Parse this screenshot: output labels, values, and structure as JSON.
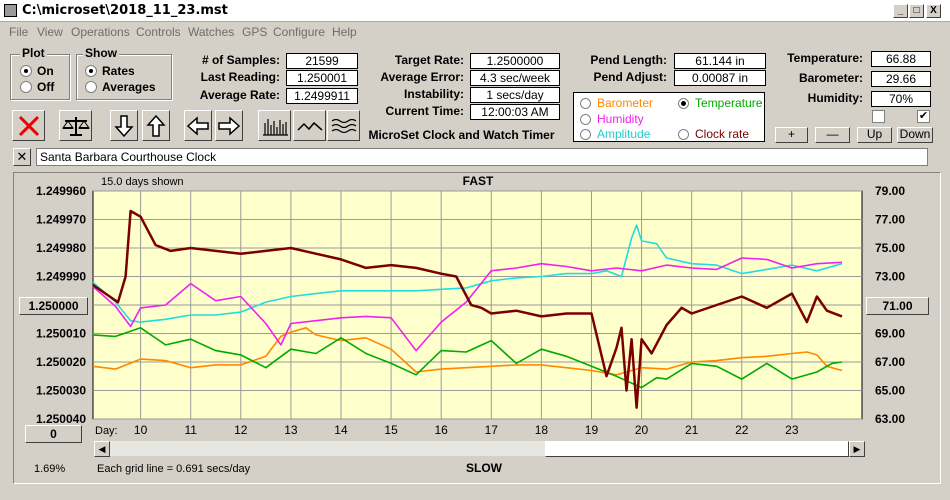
{
  "window": {
    "title": "C:\\microset\\2018_11_23.mst",
    "min": "_",
    "max": "□",
    "close": "X"
  },
  "menu": [
    "File",
    "View",
    "Operations",
    "Controls",
    "Watches",
    "GPS",
    "Configure",
    "Help"
  ],
  "plot": {
    "label": "Plot",
    "on": "On",
    "off": "Off",
    "selected": "On"
  },
  "show": {
    "label": "Show",
    "rates": "Rates",
    "averages": "Averages",
    "selected": "Rates"
  },
  "stats": {
    "samples_label": "# of Samples:",
    "samples": "21599",
    "last_label": "Last Reading:",
    "last": "1.250001",
    "avg_rate_label": "Average Rate:",
    "avg_rate": "1.2499911",
    "target_label": "Target Rate:",
    "target": "1.2500000",
    "avg_err_label": "Average Error:",
    "avg_err": "4.3 sec/week",
    "instab_label": "Instability:",
    "instab": "1 secs/day",
    "time_label": "Current Time:",
    "time": "12:00:03 AM",
    "pend_len_label": "Pend Length:",
    "pend_len": "61.144 in",
    "pend_adj_label": "Pend Adjust:",
    "pend_adj": "0.00087 in",
    "temp_label": "Temperature:",
    "temp": "66.88",
    "baro_label": "Barometer:",
    "baro": "29.66",
    "hum_label": "Humidity:",
    "hum": "70%"
  },
  "app_caption": "MicroSet Clock and Watch Timer",
  "legend": {
    "barometer": "Barometer",
    "temperature": "Temperature",
    "humidity": "Humidity",
    "amplitude": "Amplitude",
    "clock_rate": "Clock rate",
    "selected": "Temperature"
  },
  "buttons": {
    "plus": "+",
    "minus": "—",
    "up": "Up",
    "down": "Down"
  },
  "checkboxes": {
    "left": false,
    "right": true
  },
  "clock_name": "Santa Barbara Courthouse Clock",
  "colors": {
    "plot_bg": "#ffffcc",
    "clock": "#7a0000",
    "temperature": "#00aa00",
    "humidity": "#ee22ee",
    "amplitude": "#22dddd",
    "barometer": "#ff8800",
    "grid": "#9a9a9a"
  },
  "chart_data": {
    "type": "line",
    "top_label": "FAST",
    "bottom_label": "SLOW",
    "days_shown": "15.0 days shown",
    "grid_note": "Each grid line = 0.691 secs/day",
    "day_axis_label": "Day:",
    "days": [
      "10",
      "11",
      "12",
      "13",
      "14",
      "15",
      "16",
      "17",
      "18",
      "19",
      "20",
      "21",
      "22",
      "23"
    ],
    "x_range": [
      9.05,
      24.4
    ],
    "left_axis": {
      "ticks": [
        "1.249960",
        "1.249970",
        "1.249980",
        "1.249990",
        "1.250000",
        "1.250010",
        "1.250020",
        "1.250030",
        "1.250040"
      ],
      "range": [
        1.24996,
        1.25004
      ],
      "center_button": "1.250000",
      "low_button": "0"
    },
    "right_axis": {
      "ticks": [
        "79.00",
        "77.00",
        "75.00",
        "73.00",
        "71.00",
        "69.00",
        "67.00",
        "65.00",
        "63.00"
      ],
      "range": [
        63,
        79
      ],
      "center_button": "71.00"
    },
    "zoom_percent": "1.69%",
    "series": [
      {
        "name": "Clock rate",
        "color": "#7a0000",
        "x": [
          9.05,
          9.3,
          9.55,
          9.7,
          9.8,
          10.0,
          10.3,
          10.6,
          11.0,
          11.5,
          12.0,
          12.5,
          13.0,
          13.5,
          14.0,
          14.5,
          15.0,
          15.5,
          16.0,
          16.3,
          16.6,
          16.8,
          17.0,
          17.5,
          18.0,
          18.5,
          19.0,
          19.3,
          19.5,
          19.6,
          19.7,
          19.8,
          19.9,
          20.0,
          20.2,
          20.5,
          20.8,
          21.0,
          21.5,
          22.0,
          22.5,
          23.0,
          23.3,
          23.5,
          23.7,
          24.0
        ],
        "y": [
          1.249993,
          1.249996,
          1.249999,
          1.24999,
          1.249967,
          1.249969,
          1.249979,
          1.249981,
          1.24998,
          1.249981,
          1.249982,
          1.249981,
          1.24998,
          1.249982,
          1.249984,
          1.249987,
          1.249986,
          1.249987,
          1.249989,
          1.24999,
          1.25,
          1.250001,
          1.250003,
          1.250002,
          1.250004,
          1.250003,
          1.250003,
          1.250025,
          1.250015,
          1.250008,
          1.25003,
          1.250012,
          1.250036,
          1.250012,
          1.250017,
          1.250007,
          1.250001,
          1.250003,
          1.25,
          1.249997,
          1.250001,
          1.249996,
          1.250006,
          1.249997,
          1.250002,
          1.250004
        ]
      },
      {
        "name": "Temperature",
        "color": "#00aa00",
        "x": [
          9.05,
          9.5,
          10.0,
          10.5,
          11.0,
          11.5,
          12.0,
          12.5,
          13.0,
          13.5,
          14.0,
          14.5,
          15.0,
          15.5,
          16.0,
          16.5,
          17.0,
          17.5,
          18.0,
          18.5,
          19.0,
          19.5,
          20.0,
          20.3,
          20.5,
          21.0,
          21.5,
          22.0,
          22.5,
          23.0,
          23.5,
          23.8,
          24.0
        ],
        "y": [
          68.9,
          68.8,
          69.4,
          68.2,
          68.6,
          67.8,
          67.5,
          66.6,
          67.9,
          67.6,
          68.7,
          67.6,
          66.9,
          66.1,
          67.8,
          67.7,
          68.5,
          66.9,
          67.9,
          67.4,
          66.7,
          66.0,
          65.2,
          65.9,
          65.8,
          66.9,
          66.7,
          65.8,
          66.9,
          65.8,
          66.3,
          66.9,
          67.0
        ]
      },
      {
        "name": "Humidity",
        "color": "#ee22ee",
        "x": [
          9.05,
          9.5,
          9.8,
          10.0,
          10.5,
          11.0,
          11.5,
          12.0,
          12.5,
          12.8,
          13.0,
          13.5,
          14.0,
          14.5,
          15.0,
          15.5,
          16.0,
          16.5,
          17.0,
          17.5,
          18.0,
          18.5,
          19.0,
          19.5,
          20.0,
          20.5,
          21.0,
          21.5,
          22.0,
          22.5,
          23.0,
          23.5,
          24.0
        ],
        "y": [
          72.3,
          70.9,
          69.5,
          70.8,
          71.0,
          72.5,
          71.3,
          71.6,
          69.7,
          68.2,
          69.7,
          69.9,
          70.1,
          70.2,
          70.1,
          67.8,
          69.8,
          71.2,
          73.4,
          73.6,
          73.9,
          73.7,
          73.4,
          73.6,
          73.4,
          73.8,
          73.6,
          73.5,
          74.3,
          74.2,
          73.6,
          73.9,
          74.0
        ]
      },
      {
        "name": "Amplitude",
        "color": "#22dddd",
        "x": [
          9.05,
          9.5,
          9.8,
          10.0,
          10.5,
          11.0,
          11.5,
          12.0,
          12.5,
          13.0,
          13.5,
          14.0,
          14.5,
          15.0,
          15.5,
          16.0,
          16.5,
          17.0,
          17.5,
          18.0,
          18.5,
          19.0,
          19.3,
          19.6,
          19.8,
          19.9,
          20.0,
          20.3,
          20.5,
          21.0,
          21.5,
          22.0,
          22.5,
          23.0,
          23.5,
          24.0
        ],
        "y": [
          72.6,
          71.2,
          69.9,
          69.8,
          70.0,
          70.3,
          70.3,
          70.5,
          71.2,
          71.6,
          71.8,
          72.0,
          72.0,
          72.0,
          72.0,
          72.1,
          72.2,
          72.7,
          72.9,
          73.0,
          73.2,
          73.2,
          73.4,
          73.0,
          75.7,
          76.6,
          75.5,
          75.3,
          74.3,
          73.9,
          73.8,
          73.2,
          73.5,
          73.8,
          73.4,
          73.9
        ]
      },
      {
        "name": "Barometer",
        "color": "#ff8800",
        "x": [
          9.05,
          9.5,
          10.0,
          10.5,
          11.0,
          11.5,
          12.0,
          12.5,
          12.8,
          13.0,
          13.3,
          13.5,
          14.0,
          14.5,
          15.0,
          15.5,
          16.0,
          16.5,
          17.0,
          17.5,
          18.0,
          18.5,
          19.0,
          19.5,
          20.0,
          20.5,
          21.0,
          21.5,
          22.0,
          22.5,
          23.0,
          23.3,
          23.5,
          23.7,
          24.0
        ],
        "y": [
          66.7,
          66.5,
          67.2,
          67.1,
          66.6,
          66.8,
          66.8,
          67.4,
          68.8,
          69.1,
          69.4,
          68.9,
          68.5,
          68.7,
          67.9,
          66.3,
          66.5,
          66.6,
          66.7,
          66.8,
          66.8,
          66.6,
          66.4,
          66.1,
          66.6,
          66.5,
          67.0,
          67.1,
          67.3,
          67.4,
          67.6,
          67.7,
          67.5,
          66.7,
          66.4
        ]
      }
    ]
  }
}
